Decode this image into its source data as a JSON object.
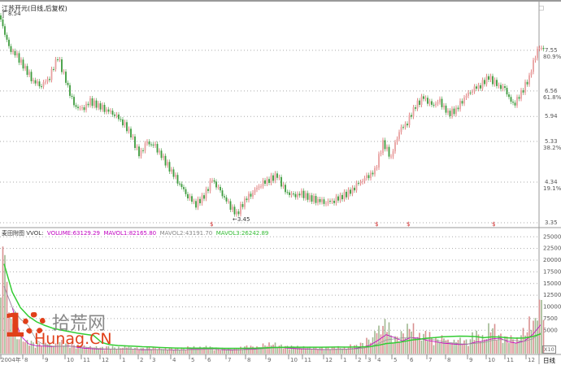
{
  "title": "江苏开元(日线,后复权)",
  "max_label": "8.54",
  "min_label": "←3.45",
  "window_button": "□",
  "volume_header": {
    "name": "麦田附图",
    "indicator": "VVOL:",
    "volume": "VOLUME:63129.29",
    "mavol1": "MAVOL1:82165.80",
    "mavol2": "MAVOL2:43191.70",
    "mavol3": "MAVOL3:26242.89"
  },
  "unit_label": "X10",
  "period_label": "日线",
  "watermark": {
    "number": "10",
    "cn": "拾荒网",
    "domain": "Hunag.CN"
  },
  "colors": {
    "up": "#d23a3a",
    "down": "#3c9a3c",
    "mavol1": "#c000c0",
    "mavol2": "#999999",
    "mavol3": "#33cc33",
    "grid": "#aaaaaa"
  },
  "chart_data": [
    {
      "type": "candlestick",
      "title": "江苏开元(日线,后复权)",
      "y_ticks": [
        {
          "value": 7.55,
          "label": "7.55",
          "fib": "80.9%"
        },
        {
          "value": 6.56,
          "label": "6.56",
          "fib": "61.8%"
        },
        {
          "value": 5.94,
          "label": "5.94",
          "fib": ""
        },
        {
          "value": 5.33,
          "label": "5.33",
          "fib": "38.2%"
        },
        {
          "value": 4.34,
          "label": "4.34",
          "fib": "19.1%"
        },
        {
          "value": 3.35,
          "label": "3.35",
          "fib": ""
        }
      ],
      "ylim": [
        3.35,
        8.54
      ],
      "high": 8.54,
      "low": 3.45,
      "closes": [
        8.3,
        7.6,
        7.4,
        7.1,
        6.8,
        6.7,
        6.9,
        7.4,
        6.8,
        6.2,
        6.1,
        6.3,
        6.2,
        6.1,
        6.0,
        5.8,
        5.5,
        5.0,
        5.3,
        5.2,
        4.9,
        4.6,
        4.3,
        4.0,
        3.8,
        4.0,
        4.4,
        4.1,
        3.8,
        3.55,
        3.9,
        4.1,
        4.3,
        4.4,
        4.5,
        4.1,
        4.0,
        4.05,
        3.95,
        3.9,
        3.85,
        3.9,
        4.0,
        4.1,
        4.3,
        4.45,
        4.6,
        5.3,
        4.95,
        5.6,
        5.8,
        6.2,
        6.4,
        6.2,
        6.3,
        6.0,
        6.1,
        6.4,
        6.6,
        6.7,
        6.9,
        6.7,
        6.6,
        6.2,
        6.5,
        6.9,
        7.6
      ],
      "markers": [
        "$",
        "$",
        "$",
        "$"
      ]
    },
    {
      "type": "bar",
      "y_ticks": [
        25000,
        22500,
        20000,
        17500,
        15000,
        12500,
        10000,
        7500,
        5000
      ],
      "ylim": [
        0,
        26000
      ],
      "volumes": [
        24000,
        9000,
        4000,
        3000,
        2500,
        2800,
        2200,
        3000,
        2500,
        2000,
        1800,
        1600,
        1500,
        1700,
        1500,
        1800,
        1400,
        1300,
        1500,
        1400,
        1300,
        1200,
        1400,
        1600,
        1500,
        1700,
        1400,
        1300,
        1200,
        1500,
        1800,
        1600,
        2200,
        2400,
        2000,
        1800,
        1700,
        1600,
        1500,
        1400,
        1500,
        1600,
        1500,
        2000,
        2500,
        3500,
        6000,
        7500,
        4000,
        5000,
        6500,
        4500,
        5000,
        3500,
        4000,
        3000,
        3500,
        3200,
        5000,
        4000,
        6500,
        4500,
        4000,
        3500,
        5500,
        8000,
        12500
      ],
      "x_labels": [
        "2004年",
        "8",
        "9",
        "10",
        "11",
        "12",
        "1",
        "2",
        "3",
        "4",
        "5",
        "6",
        "7",
        "8",
        "9",
        "10",
        "11",
        "12",
        "1",
        "2",
        "3",
        "4",
        "5",
        "6",
        "7",
        "8",
        "9",
        "10",
        "11",
        "12"
      ]
    }
  ]
}
